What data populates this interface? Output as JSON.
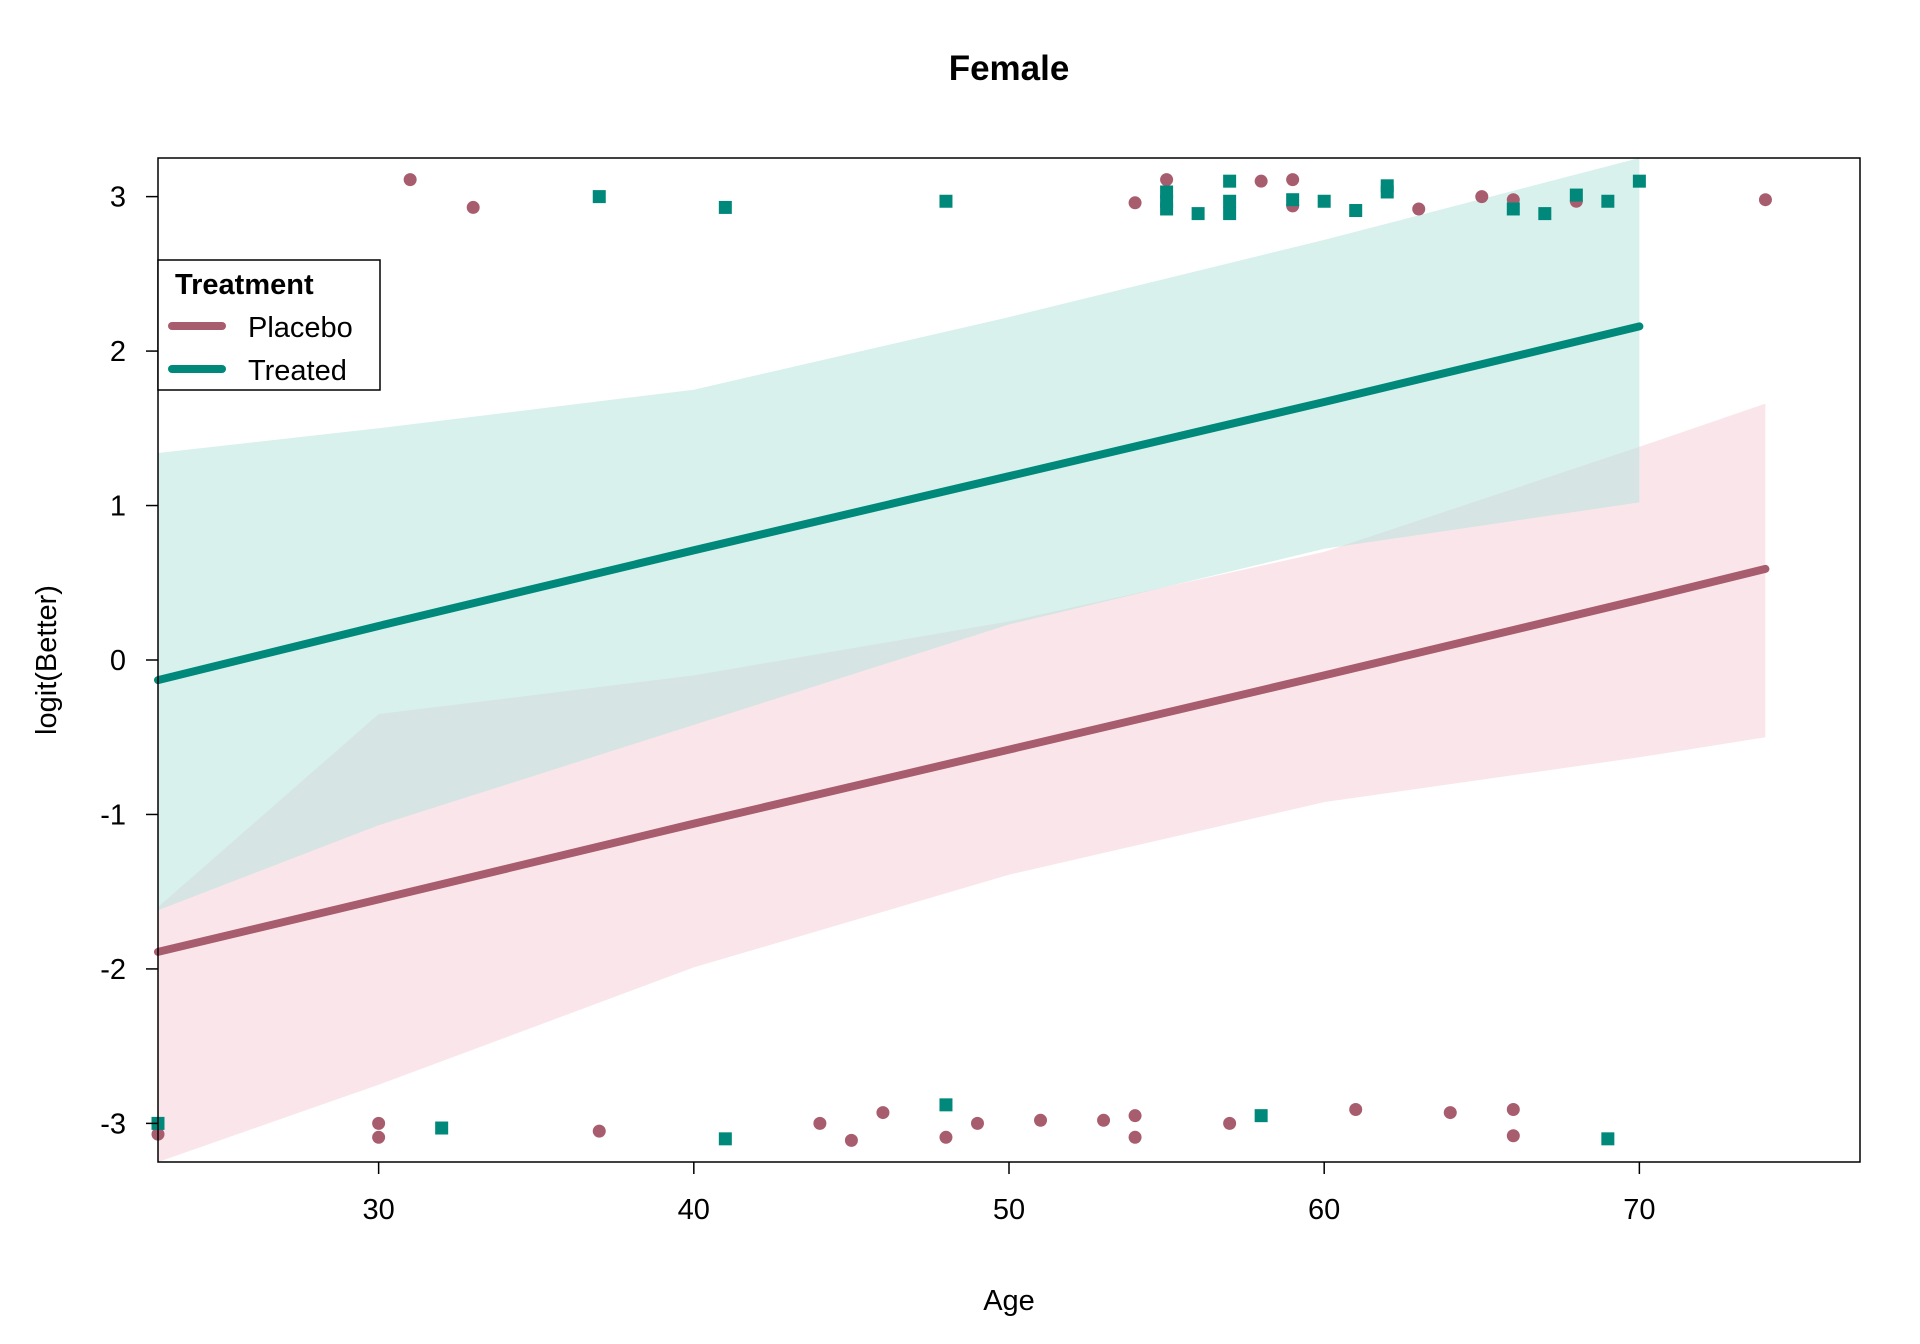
{
  "chart_data": {
    "type": "line",
    "title": "Female",
    "xlabel": "Age",
    "ylabel": "logit(Better)",
    "xlim": [
      23,
      77
    ],
    "ylim": [
      -3.25,
      3.25
    ],
    "x_ticks": [
      30,
      40,
      50,
      60,
      70
    ],
    "y_ticks": [
      -3,
      -2,
      -1,
      0,
      1,
      2,
      3
    ],
    "grid": false,
    "legend": {
      "title": "Treatment",
      "position": "top-left",
      "entries": [
        "Placebo",
        "Treated"
      ]
    },
    "colors": {
      "Placebo": "#a85d6e",
      "Treated": "#00897b",
      "Placebo_band": "#f5cdd6",
      "Treated_band": "#b2e3dc"
    },
    "series": [
      {
        "name": "Placebo",
        "fit_x": [
          23,
          30,
          40,
          50,
          60,
          70,
          74
        ],
        "fit_y": [
          -1.89,
          -1.55,
          -1.06,
          -0.58,
          -0.1,
          0.39,
          0.59
        ],
        "band_lower": [
          -3.25,
          -2.75,
          -1.99,
          -1.39,
          -0.92,
          -0.63,
          -0.5
        ],
        "band_upper": [
          -1.6,
          -0.35,
          -0.1,
          0.25,
          0.7,
          1.38,
          1.66
        ],
        "points": [
          [
            23,
            -3.07
          ],
          [
            30,
            -3.0
          ],
          [
            30,
            -3.09
          ],
          [
            31,
            3.11
          ],
          [
            33,
            2.93
          ],
          [
            37,
            -3.05
          ],
          [
            44,
            -3.0
          ],
          [
            45,
            -3.11
          ],
          [
            46,
            -2.93
          ],
          [
            48,
            -3.09
          ],
          [
            49,
            -3.0
          ],
          [
            51,
            -2.98
          ],
          [
            53,
            -2.98
          ],
          [
            54,
            2.96
          ],
          [
            54,
            -2.95
          ],
          [
            54,
            -3.09
          ],
          [
            55,
            3.11
          ],
          [
            57,
            -3.0
          ],
          [
            58,
            3.1
          ],
          [
            59,
            3.11
          ],
          [
            59,
            2.94
          ],
          [
            61,
            -2.91
          ],
          [
            63,
            2.92
          ],
          [
            64,
            -2.93
          ],
          [
            65,
            3.0
          ],
          [
            66,
            2.98
          ],
          [
            66,
            -2.91
          ],
          [
            66,
            -3.08
          ],
          [
            68,
            2.97
          ],
          [
            74,
            2.98
          ]
        ]
      },
      {
        "name": "Treated",
        "fit_x": [
          23,
          30,
          40,
          50,
          60,
          70
        ],
        "fit_y": [
          -0.13,
          0.22,
          0.71,
          1.19,
          1.67,
          2.16
        ],
        "band_lower": [
          -1.62,
          -1.07,
          -0.42,
          0.23,
          0.72,
          1.02
        ],
        "band_upper": [
          1.34,
          1.5,
          1.75,
          2.22,
          2.72,
          3.25
        ],
        "points": [
          [
            23,
            -3.0
          ],
          [
            32,
            -3.03
          ],
          [
            37,
            3.0
          ],
          [
            41,
            2.93
          ],
          [
            41,
            -3.1
          ],
          [
            48,
            2.97
          ],
          [
            48,
            -2.88
          ],
          [
            55,
            3.03
          ],
          [
            55,
            2.97
          ],
          [
            55,
            2.92
          ],
          [
            56,
            2.89
          ],
          [
            57,
            3.1
          ],
          [
            57,
            2.97
          ],
          [
            57,
            2.89
          ],
          [
            58,
            -2.95
          ],
          [
            59,
            2.98
          ],
          [
            60,
            2.97
          ],
          [
            61,
            2.91
          ],
          [
            62,
            3.07
          ],
          [
            62,
            3.03
          ],
          [
            66,
            2.92
          ],
          [
            67,
            2.89
          ],
          [
            68,
            3.01
          ],
          [
            69,
            2.97
          ],
          [
            69,
            -3.1
          ],
          [
            70,
            3.1
          ]
        ]
      }
    ]
  }
}
